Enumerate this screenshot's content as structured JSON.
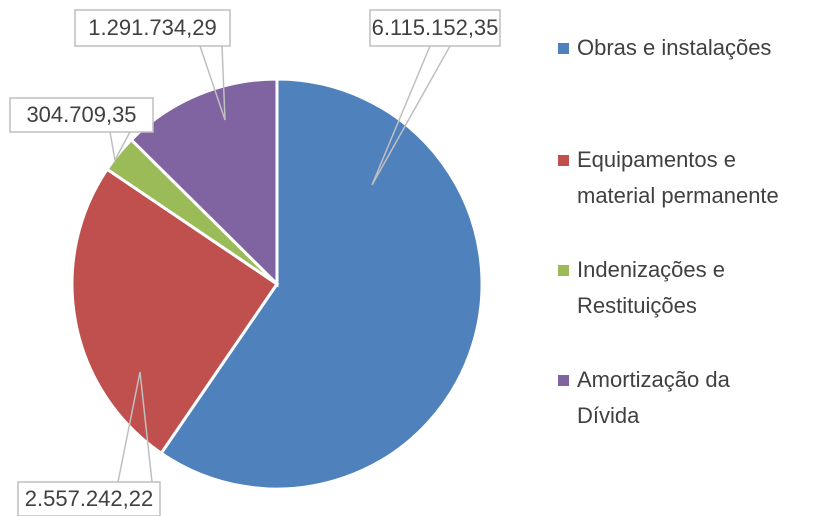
{
  "chart_data": {
    "type": "pie",
    "categories": [
      "Obras e instalações",
      "Equipamentos e material permanente",
      "Indenizações e Restituições",
      "Amortização da Dívida"
    ],
    "values": [
      6115152.35,
      2557242.22,
      304709.35,
      1291734.29
    ],
    "value_labels": [
      "6.115.152,35",
      "2.557.242,22",
      "304.709,35",
      "1.291.734,29"
    ],
    "colors": [
      "#4f81bd",
      "#c0504d",
      "#9bbb59",
      "#8064a2"
    ],
    "legend": "right"
  }
}
